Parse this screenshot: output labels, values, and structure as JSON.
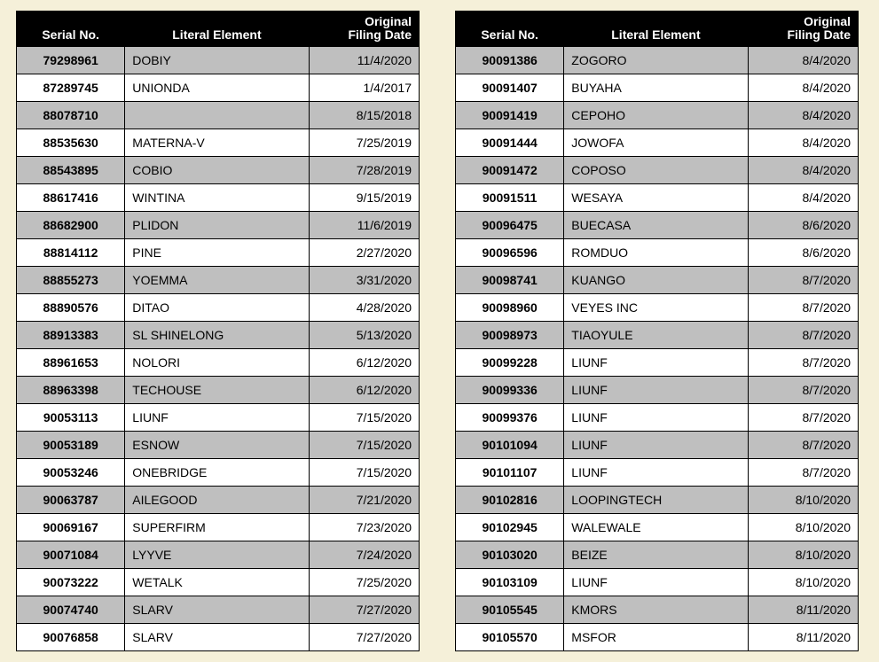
{
  "headers": {
    "serial": "Serial No.",
    "literal": "Literal Element",
    "date_line1": "Original",
    "date_line2": "Filing Date"
  },
  "colors": {
    "page_bg": "#f5f0d9",
    "header_bg": "#000000",
    "header_fg": "#ffffff",
    "row_odd_bg": "#bfbfbf",
    "row_even_bg": "#ffffff",
    "border": "#000000"
  },
  "left": [
    {
      "serial": "79298961",
      "literal": "DOBIY",
      "date": "11/4/2020"
    },
    {
      "serial": "87289745",
      "literal": "UNIONDA",
      "date": "1/4/2017"
    },
    {
      "serial": "88078710",
      "literal": "",
      "date": "8/15/2018"
    },
    {
      "serial": "88535630",
      "literal": "MATERNA-V",
      "date": "7/25/2019"
    },
    {
      "serial": "88543895",
      "literal": "COBIO",
      "date": "7/28/2019"
    },
    {
      "serial": "88617416",
      "literal": "WINTINA",
      "date": "9/15/2019"
    },
    {
      "serial": "88682900",
      "literal": "PLIDON",
      "date": "11/6/2019"
    },
    {
      "serial": "88814112",
      "literal": "PINE",
      "date": "2/27/2020"
    },
    {
      "serial": "88855273",
      "literal": "YOEMMA",
      "date": "3/31/2020"
    },
    {
      "serial": "88890576",
      "literal": "DITAO",
      "date": "4/28/2020"
    },
    {
      "serial": "88913383",
      "literal": "SL SHINELONG",
      "date": "5/13/2020"
    },
    {
      "serial": "88961653",
      "literal": "NOLORI",
      "date": "6/12/2020"
    },
    {
      "serial": "88963398",
      "literal": "TECHOUSE",
      "date": "6/12/2020"
    },
    {
      "serial": "90053113",
      "literal": "LIUNF",
      "date": "7/15/2020"
    },
    {
      "serial": "90053189",
      "literal": "ESNOW",
      "date": "7/15/2020"
    },
    {
      "serial": "90053246",
      "literal": "ONEBRIDGE",
      "date": "7/15/2020"
    },
    {
      "serial": "90063787",
      "literal": "AILEGOOD",
      "date": "7/21/2020"
    },
    {
      "serial": "90069167",
      "literal": "SUPERFIRM",
      "date": "7/23/2020"
    },
    {
      "serial": "90071084",
      "literal": "LYYVE",
      "date": "7/24/2020"
    },
    {
      "serial": "90073222",
      "literal": "WETALK",
      "date": "7/25/2020"
    },
    {
      "serial": "90074740",
      "literal": "SLARV",
      "date": "7/27/2020"
    },
    {
      "serial": "90076858",
      "literal": "SLARV",
      "date": "7/27/2020"
    }
  ],
  "right": [
    {
      "serial": "90091386",
      "literal": "ZOGORO",
      "date": "8/4/2020"
    },
    {
      "serial": "90091407",
      "literal": "BUYAHA",
      "date": "8/4/2020"
    },
    {
      "serial": "90091419",
      "literal": "CEPOHO",
      "date": "8/4/2020"
    },
    {
      "serial": "90091444",
      "literal": "JOWOFA",
      "date": "8/4/2020"
    },
    {
      "serial": "90091472",
      "literal": "COPOSO",
      "date": "8/4/2020"
    },
    {
      "serial": "90091511",
      "literal": "WESAYA",
      "date": "8/4/2020"
    },
    {
      "serial": "90096475",
      "literal": "BUECASA",
      "date": "8/6/2020"
    },
    {
      "serial": "90096596",
      "literal": "ROMDUO",
      "date": "8/6/2020"
    },
    {
      "serial": "90098741",
      "literal": "KUANGO",
      "date": "8/7/2020"
    },
    {
      "serial": "90098960",
      "literal": "VEYES INC",
      "date": "8/7/2020"
    },
    {
      "serial": "90098973",
      "literal": "TIAOYULE",
      "date": "8/7/2020"
    },
    {
      "serial": "90099228",
      "literal": "LIUNF",
      "date": "8/7/2020"
    },
    {
      "serial": "90099336",
      "literal": "LIUNF",
      "date": "8/7/2020"
    },
    {
      "serial": "90099376",
      "literal": "LIUNF",
      "date": "8/7/2020"
    },
    {
      "serial": "90101094",
      "literal": "LIUNF",
      "date": "8/7/2020"
    },
    {
      "serial": "90101107",
      "literal": "LIUNF",
      "date": "8/7/2020"
    },
    {
      "serial": "90102816",
      "literal": "LOOPINGTECH",
      "date": "8/10/2020"
    },
    {
      "serial": "90102945",
      "literal": "WALEWALE",
      "date": "8/10/2020"
    },
    {
      "serial": "90103020",
      "literal": "BEIZE",
      "date": "8/10/2020"
    },
    {
      "serial": "90103109",
      "literal": "LIUNF",
      "date": "8/10/2020"
    },
    {
      "serial": "90105545",
      "literal": "KMORS",
      "date": "8/11/2020"
    },
    {
      "serial": "90105570",
      "literal": "MSFOR",
      "date": "8/11/2020"
    }
  ]
}
